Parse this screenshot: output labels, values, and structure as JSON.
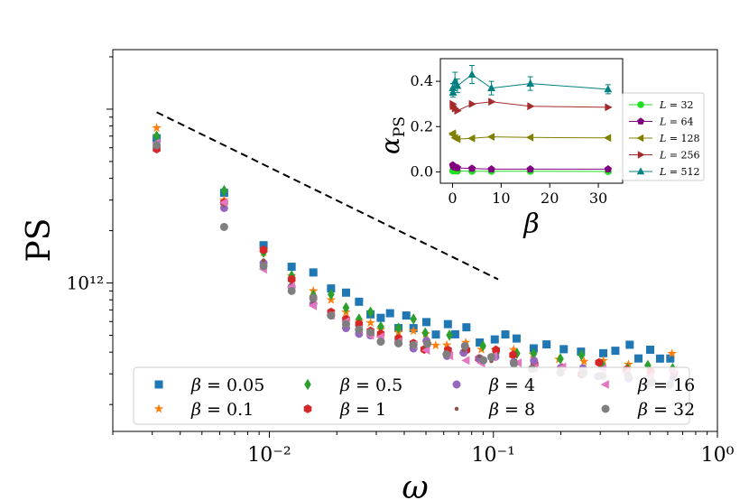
{
  "chart_data": [
    {
      "type": "scatter",
      "name": "main",
      "xscale": "log",
      "yscale": "log",
      "xlim": [
        0.002,
        1.0
      ],
      "ylim": [
        140000000000.0,
        22000000000000.0
      ],
      "xlabel": "ω",
      "ylabel": "PS",
      "x_ticks": [
        {
          "value": 0.01,
          "label": "10⁻²"
        },
        {
          "value": 0.1,
          "label": "10⁻¹"
        },
        {
          "value": 1.0,
          "label": "10⁰"
        }
      ],
      "y_ticks": [
        {
          "value": 1000000000000.0,
          "label": "10¹²"
        }
      ],
      "legend_loc": "lower center",
      "reference_line": {
        "style": "dashed",
        "color": "#000000",
        "points": [
          [
            0.00314,
            9600000000000.0
          ],
          [
            0.105,
            1050000000000.0
          ]
        ]
      },
      "series": [
        {
          "name": "β = 0.05",
          "marker": "square",
          "color": "#1f77b4",
          "x": [
            0.00314,
            0.00628,
            0.00942,
            0.01257,
            0.01571,
            0.01885,
            0.02199,
            0.02513,
            0.02827,
            0.03142,
            0.03456,
            0.0377,
            0.04084,
            0.04398,
            0.05027,
            0.05655,
            0.06283,
            0.06912,
            0.0754,
            0.08796,
            0.1005,
            0.1131,
            0.1257,
            0.1508,
            0.1759,
            0.2011,
            0.2513,
            0.3016,
            0.3519,
            0.4021,
            0.4524,
            0.5027,
            0.5529,
            0.6283
          ],
          "y": [
            6800000000000.0,
            3300000000000.0,
            1650000000000.0,
            1240000000000.0,
            1150000000000.0,
            930000000000.0,
            880000000000.0,
            780000000000.0,
            660000000000.0,
            630000000000.0,
            670000000000.0,
            550000000000.0,
            650000000000.0,
            550000000000.0,
            600000000000.0,
            490000000000.0,
            580000000000.0,
            530000000000.0,
            550000000000.0,
            470000000000.0,
            450000000000.0,
            490000000000.0,
            460000000000.0,
            420000000000.0,
            420000000000.0,
            440000000000.0,
            400000000000.0,
            380000000000.0,
            410000000000.0,
            430000000000.0,
            390000000000.0,
            400000000000.0,
            360000000000.0,
            380000000000.0
          ]
        },
        {
          "name": "β = 0.1",
          "marker": "star",
          "color": "#ff7f0e",
          "x": [
            0.00314,
            0.00628,
            0.00942,
            0.01257,
            0.01571,
            0.01885,
            0.02199,
            0.02513,
            0.02827,
            0.03142,
            0.0377,
            0.04398,
            0.05027,
            0.05655,
            0.06283,
            0.0754,
            0.08796,
            0.1005,
            0.1257,
            0.1508,
            0.2011,
            0.2513,
            0.3016,
            0.4021,
            0.5027,
            0.6283
          ],
          "y": [
            7800000000000.0,
            3000000000000.0,
            1500000000000.0,
            1100000000000.0,
            900000000000.0,
            800000000000.0,
            680000000000.0,
            600000000000.0,
            590000000000.0,
            540000000000.0,
            520000000000.0,
            530000000000.0,
            500000000000.0,
            460000000000.0,
            460000000000.0,
            440000000000.0,
            410000000000.0,
            420000000000.0,
            400000000000.0,
            370000000000.0,
            360000000000.0,
            360000000000.0,
            350000000000.0,
            340000000000.0,
            330000000000.0,
            390000000000.0
          ]
        },
        {
          "name": "β = 0.5",
          "marker": "diamond",
          "color": "#2ca02c",
          "x": [
            0.00314,
            0.00628,
            0.00942,
            0.01257,
            0.01571,
            0.01885,
            0.02199,
            0.02513,
            0.02827,
            0.03142,
            0.0377,
            0.04398,
            0.05027,
            0.06283,
            0.0754,
            0.08796,
            0.1005,
            0.1257,
            0.1508,
            0.2011,
            0.2513,
            0.3016,
            0.4021,
            0.5027,
            0.6283
          ],
          "y": [
            7000000000000.0,
            3400000000000.0,
            1500000000000.0,
            1100000000000.0,
            850000000000.0,
            860000000000.0,
            720000000000.0,
            620000000000.0,
            680000000000.0,
            560000000000.0,
            550000000000.0,
            620000000000.0,
            500000000000.0,
            480000000000.0,
            440000000000.0,
            460000000000.0,
            410000000000.0,
            400000000000.0,
            370000000000.0,
            360000000000.0,
            380000000000.0,
            350000000000.0,
            340000000000.0,
            330000000000.0,
            320000000000.0
          ]
        },
        {
          "name": "β = 1",
          "marker": "hexagon",
          "color": "#d62728",
          "x": [
            0.00314,
            0.00628,
            0.00942,
            0.01257,
            0.01571,
            0.01885,
            0.02199,
            0.02513,
            0.02827,
            0.03142,
            0.0377,
            0.04398,
            0.05027,
            0.06283,
            0.0754,
            0.08796,
            0.1005,
            0.1257,
            0.1508,
            0.2011,
            0.2513,
            0.3016,
            0.4021,
            0.5027,
            0.6283
          ],
          "y": [
            5900000000000.0,
            2900000000000.0,
            1550000000000.0,
            1050000000000.0,
            820000000000.0,
            680000000000.0,
            620000000000.0,
            580000000000.0,
            530000000000.0,
            510000000000.0,
            480000000000.0,
            450000000000.0,
            440000000000.0,
            430000000000.0,
            410000000000.0,
            380000000000.0,
            400000000000.0,
            370000000000.0,
            350000000000.0,
            340000000000.0,
            310000000000.0,
            330000000000.0,
            300000000000.0,
            320000000000.0,
            290000000000.0
          ]
        },
        {
          "name": "β = 4",
          "marker": "circle",
          "color": "#9467bd",
          "x": [
            0.00314,
            0.00628,
            0.00942,
            0.01257,
            0.01571,
            0.01885,
            0.02199,
            0.02513,
            0.02827,
            0.03142,
            0.0377,
            0.04398,
            0.05027,
            0.06283,
            0.0754,
            0.08796,
            0.1005,
            0.1257,
            0.1508,
            0.2011,
            0.2513,
            0.3016,
            0.4021,
            0.5027,
            0.6283
          ],
          "y": [
            6200000000000.0,
            2700000000000.0,
            1300000000000.0,
            950000000000.0,
            760000000000.0,
            650000000000.0,
            550000000000.0,
            510000000000.0,
            500000000000.0,
            460000000000.0,
            450000000000.0,
            420000000000.0,
            440000000000.0,
            380000000000.0,
            390000000000.0,
            360000000000.0,
            360000000000.0,
            330000000000.0,
            340000000000.0,
            310000000000.0,
            320000000000.0,
            300000000000.0,
            290000000000.0,
            280000000000.0,
            290000000000.0
          ]
        },
        {
          "name": "β = 8",
          "marker": "dot",
          "color": "#8c564b",
          "x": [
            0.00314,
            0.00628,
            0.00942,
            0.01257,
            0.01571,
            0.01885,
            0.02199,
            0.02513,
            0.02827,
            0.03142,
            0.0377,
            0.04398,
            0.05027,
            0.06283,
            0.0754,
            0.08796,
            0.1005,
            0.1257,
            0.1508,
            0.2011,
            0.2513,
            0.3016,
            0.4021,
            0.5027,
            0.6283
          ],
          "y": [
            6300000000000.0,
            2800000000000.0,
            1350000000000.0,
            980000000000.0,
            780000000000.0,
            660000000000.0,
            580000000000.0,
            530000000000.0,
            500000000000.0,
            470000000000.0,
            460000000000.0,
            430000000000.0,
            420000000000.0,
            400000000000.0,
            390000000000.0,
            370000000000.0,
            360000000000.0,
            350000000000.0,
            330000000000.0,
            320000000000.0,
            310000000000.0,
            300000000000.0,
            290000000000.0,
            280000000000.0,
            280000000000.0
          ]
        },
        {
          "name": "β = 16",
          "marker": "triangle-left",
          "color": "#e377c2",
          "x": [
            0.00314,
            0.00628,
            0.00942,
            0.01257,
            0.01571,
            0.01885,
            0.02199,
            0.02513,
            0.02827,
            0.03142,
            0.0377,
            0.04398,
            0.05027,
            0.06283,
            0.0754,
            0.08796,
            0.1005,
            0.1257,
            0.1508,
            0.2011,
            0.2513,
            0.3016,
            0.4021,
            0.5027,
            0.6283
          ],
          "y": [
            6400000000000.0,
            2900000000000.0,
            1200000000000.0,
            950000000000.0,
            740000000000.0,
            650000000000.0,
            600000000000.0,
            540000000000.0,
            500000000000.0,
            490000000000.0,
            460000000000.0,
            440000000000.0,
            420000000000.0,
            400000000000.0,
            380000000000.0,
            360000000000.0,
            360000000000.0,
            350000000000.0,
            320000000000.0,
            340000000000.0,
            310000000000.0,
            330000000000.0,
            300000000000.0,
            310000000000.0,
            300000000000.0
          ]
        },
        {
          "name": "β = 32",
          "marker": "circle",
          "color": "#7f7f7f",
          "x": [
            0.00314,
            0.00628,
            0.00942,
            0.01257,
            0.01571,
            0.01885,
            0.02199,
            0.02513,
            0.02827,
            0.03142,
            0.0377,
            0.04398,
            0.05027,
            0.06283,
            0.0754,
            0.08796,
            0.1005,
            0.1257,
            0.1508,
            0.2011,
            0.2513,
            0.3016,
            0.4021,
            0.5027,
            0.6283
          ],
          "y": [
            6200000000000.0,
            2100000000000.0,
            1250000000000.0,
            900000000000.0,
            820000000000.0,
            650000000000.0,
            580000000000.0,
            540000000000.0,
            520000000000.0,
            460000000000.0,
            450000000000.0,
            440000000000.0,
            430000000000.0,
            390000000000.0,
            410000000000.0,
            360000000000.0,
            370000000000.0,
            350000000000.0,
            330000000000.0,
            320000000000.0,
            300000000000.0,
            280000000000.0,
            290000000000.0,
            270000000000.0,
            250000000000.0
          ]
        }
      ]
    },
    {
      "type": "line",
      "name": "inset",
      "xlim": [
        -2.5,
        35
      ],
      "ylim": [
        -0.05,
        0.5
      ],
      "xlabel": "β",
      "ylabel": "α",
      "ylabel_subscript": "PS",
      "x_ticks": [
        0,
        10,
        20,
        30
      ],
      "y_ticks": [
        0.0,
        0.2,
        0.4
      ],
      "y_tick_labels": [
        "0.0",
        "0.2",
        "0.4"
      ],
      "legend_loc": "outside right",
      "x": [
        0.05,
        0.1,
        0.5,
        1,
        4,
        8,
        16,
        32
      ],
      "series": [
        {
          "name": "L = 32",
          "label_var": "L",
          "label_val": " = 32",
          "marker": "circle",
          "color": "#22dd22",
          "values": [
            0.005,
            0.005,
            0.005,
            0.004,
            0.003,
            0.003,
            0.003,
            0.002
          ]
        },
        {
          "name": "L = 64",
          "label_var": "L",
          "label_val": " = 64",
          "marker": "pentagon",
          "color": "#800080",
          "values": [
            0.03,
            0.025,
            0.02,
            0.018,
            0.015,
            0.012,
            0.012,
            0.012
          ]
        },
        {
          "name": "L = 128",
          "label_var": "L",
          "label_val": " = 128",
          "marker": "triangle-left",
          "color": "#808000",
          "values": [
            0.17,
            0.165,
            0.15,
            0.145,
            0.148,
            0.155,
            0.152,
            0.15
          ]
        },
        {
          "name": "L = 256",
          "label_var": "L",
          "label_val": " = 256",
          "marker": "triangle-right",
          "color": "#a52a2a",
          "values": [
            0.3,
            0.29,
            0.28,
            0.27,
            0.3,
            0.31,
            0.29,
            0.285
          ]
        },
        {
          "name": "L = 512",
          "label_var": "L",
          "label_val": " = 512",
          "marker": "triangle-up",
          "color": "#008080",
          "values": [
            0.37,
            0.35,
            0.4,
            0.38,
            0.43,
            0.37,
            0.39,
            0.365
          ],
          "errors": [
            0.02,
            0.02,
            0.04,
            0.03,
            0.04,
            0.03,
            0.03,
            0.02
          ]
        }
      ]
    }
  ]
}
